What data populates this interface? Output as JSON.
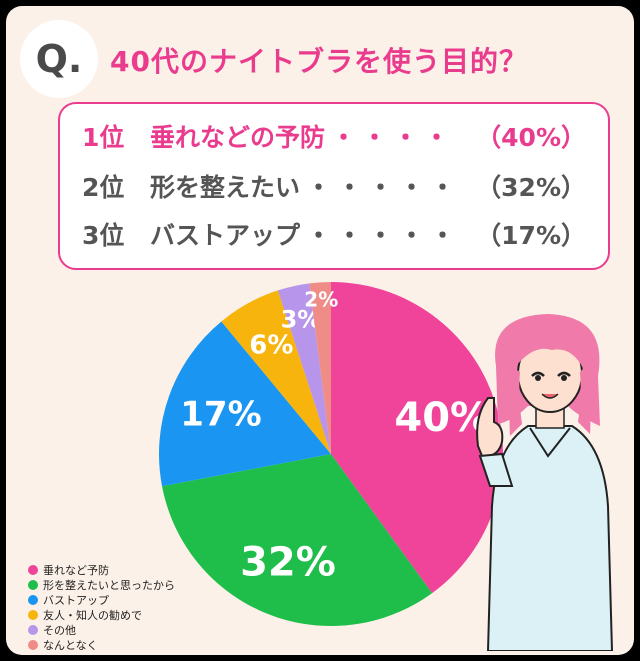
{
  "header": {
    "q_label": "Q.",
    "title": "40代のナイトブラを使う目的？"
  },
  "ranking": [
    {
      "rank": "1位",
      "label": "垂れなどの予防",
      "dots": "・・・・",
      "pct": "（40%）"
    },
    {
      "rank": "2位",
      "label": "形を整えたい",
      "dots": "・・・・・",
      "pct": "（32%）"
    },
    {
      "rank": "3位",
      "label": "バストアップ",
      "dots": "・・・・・",
      "pct": "（17%）"
    }
  ],
  "chart_data": {
    "type": "pie",
    "slices": [
      {
        "label": "垂れなど予防",
        "value": 40,
        "display": "40%",
        "color": "#f0439a"
      },
      {
        "label": "形を整えたいと思ったから",
        "value": 32,
        "display": "32%",
        "color": "#1fbe4a"
      },
      {
        "label": "バストアップ",
        "value": 17,
        "display": "17%",
        "color": "#1a96f2"
      },
      {
        "label": "友人・知人の勧めで",
        "value": 6,
        "display": "6%",
        "color": "#f6b40d"
      },
      {
        "label": "その他",
        "value": 3,
        "display": "3%",
        "color": "#b795ea"
      },
      {
        "label": "なんとなく",
        "value": 2,
        "display": "2%",
        "color": "#ef8c86"
      }
    ],
    "legend_position": "bottom-left"
  }
}
